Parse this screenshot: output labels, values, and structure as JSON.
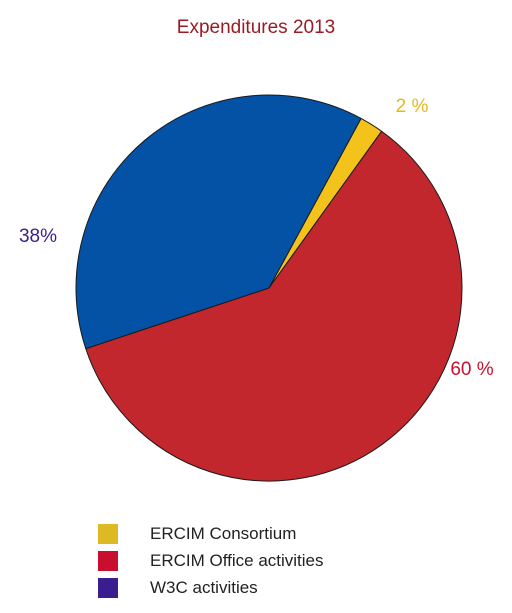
{
  "chart_data": {
    "type": "pie",
    "title": "Expenditures 2013",
    "slices": [
      {
        "legend": "ERCIM Consortium",
        "value": 2,
        "label": "2 %",
        "color": "#f3c21b",
        "label_color": "#e3b81f"
      },
      {
        "legend": "ERCIM Office activities",
        "value": 60,
        "label": "60 %",
        "color": "#c1272d",
        "label_color": "#c8102e"
      },
      {
        "legend": "W3C activities",
        "value": 38,
        "label": "38%",
        "color": "#0452a5",
        "label_color": "#3a1d8f"
      }
    ],
    "legend_swatches": [
      "#ddb923",
      "#c8102e",
      "#3a1d8f"
    ],
    "legend_placement": "bottom"
  }
}
